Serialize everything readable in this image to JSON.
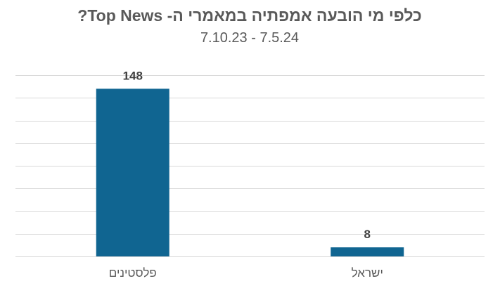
{
  "chart_data": {
    "type": "bar",
    "title": "כלפי מי הובעה אמפתיה במאמרי ה- Top News?",
    "subtitle": "7.10.23 - 7.5.24",
    "categories": [
      "פלסטינים",
      "ישראל"
    ],
    "values": [
      148,
      8
    ],
    "data_labels": [
      "148",
      "8"
    ],
    "ylim": [
      0,
      160
    ],
    "grid": true,
    "gridlines": 9,
    "bar_color": "#106591",
    "xlabel": "",
    "ylabel": ""
  }
}
